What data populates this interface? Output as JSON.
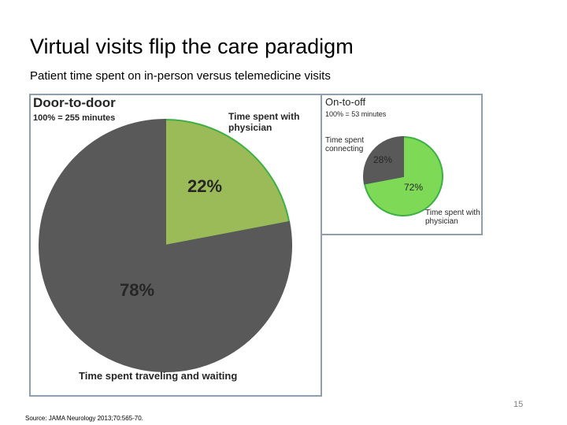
{
  "slide": {
    "title": "Virtual visits flip the care paradigm",
    "subtitle": "Patient time spent on in-person versus telemedicine visits",
    "source": "Source: JAMA Neurology 2013;70:565-70.",
    "page_number": "15"
  },
  "chart_data": [
    {
      "type": "pie",
      "title": "Door-to-door",
      "subtitle": "100% = 255 minutes",
      "categories": [
        "Time spent with physician",
        "Time spent traveling and waiting"
      ],
      "values": [
        22,
        78
      ],
      "value_labels": [
        "22%",
        "78%"
      ],
      "colors": [
        "#9bbb59",
        "#595959"
      ]
    },
    {
      "type": "pie",
      "title": "On-to-off",
      "subtitle": "100% = 53 minutes",
      "categories": [
        "Time spent with physician",
        "Time spent connecting"
      ],
      "values": [
        72,
        28
      ],
      "value_labels": [
        "72%",
        "28%"
      ],
      "colors": [
        "#7ed957",
        "#595959"
      ]
    }
  ]
}
